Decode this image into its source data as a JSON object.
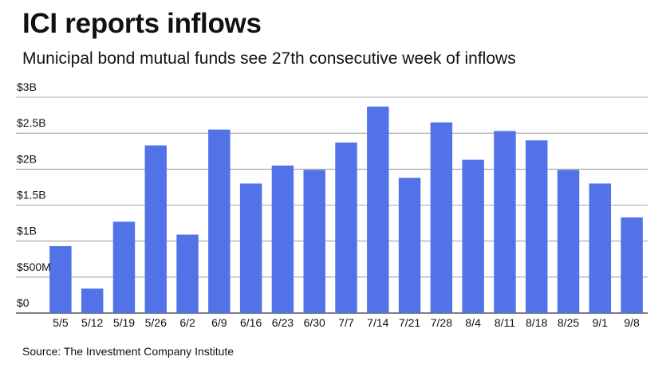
{
  "title": "ICI reports inflows",
  "subtitle": "Municipal bond mutual funds see 27th consecutive week of inflows",
  "source": "Source: The Investment Company Institute",
  "colors": {
    "bar": "#5273e8",
    "grid": "#8c8c8c",
    "axis": "#333333"
  },
  "chart_data": {
    "type": "bar",
    "title": "ICI reports inflows",
    "subtitle": "Municipal bond mutual funds see 27th consecutive week of inflows",
    "xlabel": "",
    "ylabel": "",
    "categories": [
      "5/5",
      "5/12",
      "5/19",
      "5/26",
      "6/2",
      "6/9",
      "6/16",
      "6/23",
      "6/30",
      "7/7",
      "7/14",
      "7/21",
      "7/28",
      "8/4",
      "8/11",
      "8/18",
      "8/25",
      "9/1",
      "9/8"
    ],
    "values": [
      0.93,
      0.34,
      1.27,
      2.33,
      1.09,
      2.55,
      1.8,
      2.05,
      1.99,
      2.37,
      2.87,
      1.88,
      2.65,
      2.13,
      2.53,
      2.4,
      1.99,
      1.8,
      1.33
    ],
    "ylim": [
      0,
      3
    ],
    "yticks": [
      {
        "value": 0,
        "label": "$0"
      },
      {
        "value": 0.5,
        "label": "$500M"
      },
      {
        "value": 1,
        "label": "$1B"
      },
      {
        "value": 1.5,
        "label": "$1.5B"
      },
      {
        "value": 2,
        "label": "$2B"
      },
      {
        "value": 2.5,
        "label": "$2.5B"
      },
      {
        "value": 3,
        "label": "$3B"
      }
    ],
    "grid": true,
    "legend": "none"
  }
}
